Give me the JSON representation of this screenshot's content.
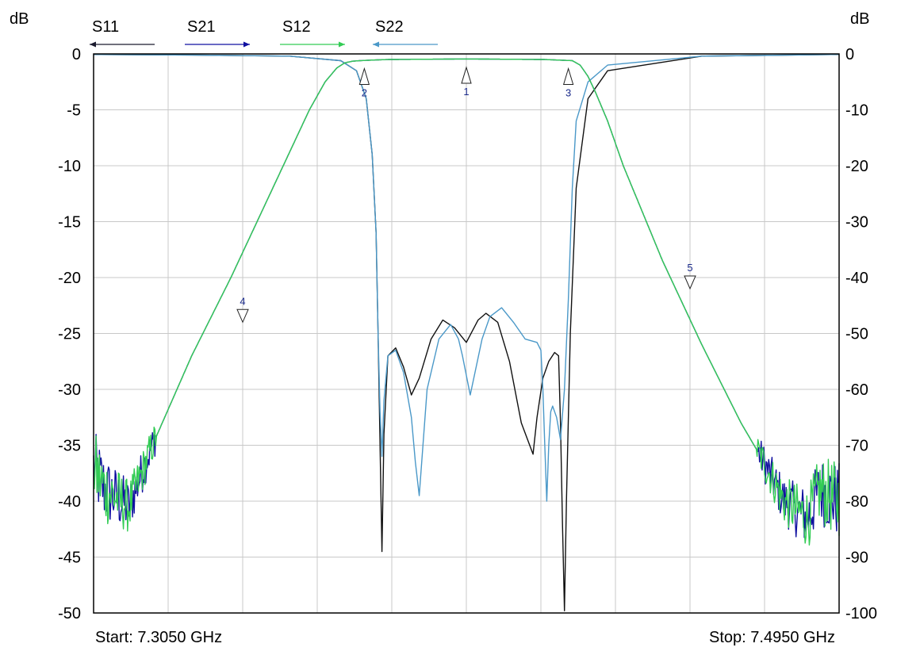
{
  "chart_data": {
    "type": "line",
    "left_axis_unit": "dB",
    "right_axis_unit": "dB",
    "start_label": "Start: 7.3050 GHz",
    "stop_label": "Stop: 7.4950 GHz",
    "xlim": [
      7.305,
      7.495
    ],
    "ylim_left": [
      -50,
      0
    ],
    "ylim_right": [
      -100,
      0
    ],
    "left_ticks": [
      "0",
      "-5",
      "-10",
      "-15",
      "-20",
      "-25",
      "-30",
      "-35",
      "-40",
      "-45",
      "-50"
    ],
    "right_ticks": [
      "0",
      "-10",
      "-20",
      "-30",
      "-40",
      "-50",
      "-60",
      "-70",
      "-80",
      "-90",
      "-100"
    ],
    "grid": true,
    "legend": [
      {
        "name": "S11",
        "color": "#1a1a2e",
        "arrow": "left"
      },
      {
        "name": "S21",
        "color": "#1010a0",
        "arrow": "right"
      },
      {
        "name": "S12",
        "color": "#33cc55",
        "arrow": "right"
      },
      {
        "name": "S22",
        "color": "#4a98c8",
        "arrow": "left"
      }
    ],
    "series": [
      {
        "name": "S11",
        "color": "#111111",
        "axis": "left",
        "x": [
          7.305,
          7.33,
          7.355,
          7.368,
          7.372,
          7.3745,
          7.376,
          7.377,
          7.3775,
          7.378,
          7.3785,
          7.379,
          7.38,
          7.382,
          7.384,
          7.386,
          7.388,
          7.391,
          7.394,
          7.397,
          7.4,
          7.403,
          7.405,
          7.408,
          7.411,
          7.414,
          7.417,
          7.418,
          7.4195,
          7.421,
          7.4225,
          7.4235,
          7.424,
          7.4245,
          7.425,
          7.4255,
          7.4265,
          7.428,
          7.431,
          7.436,
          7.46,
          7.495
        ],
        "y": [
          -0.05,
          -0.1,
          -0.2,
          -0.6,
          -1.5,
          -4.0,
          -9.0,
          -16.0,
          -25.0,
          -35.0,
          -44.5,
          -34.0,
          -27.0,
          -26.3,
          -28.0,
          -30.5,
          -29.0,
          -25.5,
          -23.8,
          -24.5,
          -25.8,
          -23.8,
          -23.2,
          -24.0,
          -27.5,
          -33.0,
          -35.8,
          -32.5,
          -29.0,
          -27.5,
          -26.7,
          -27.0,
          -33.0,
          -42.0,
          -49.8,
          -40.0,
          -25.0,
          -12.0,
          -4.0,
          -1.5,
          -0.2,
          -0.05
        ]
      },
      {
        "name": "S22",
        "color": "#4a98c8",
        "axis": "left",
        "x": [
          7.305,
          7.33,
          7.355,
          7.368,
          7.372,
          7.3745,
          7.376,
          7.377,
          7.3775,
          7.378,
          7.3785,
          7.379,
          7.38,
          7.382,
          7.384,
          7.386,
          7.387,
          7.388,
          7.39,
          7.393,
          7.396,
          7.398,
          7.399,
          7.401,
          7.404,
          7.406,
          7.409,
          7.412,
          7.415,
          7.418,
          7.419,
          7.4195,
          7.42,
          7.4205,
          7.421,
          7.4215,
          7.422,
          7.423,
          7.424,
          7.425,
          7.426,
          7.427,
          7.428,
          7.431,
          7.436,
          7.46,
          7.495
        ],
        "y": [
          -0.05,
          -0.1,
          -0.2,
          -0.6,
          -1.5,
          -4.0,
          -9.0,
          -16.0,
          -25.0,
          -32.0,
          -36.0,
          -31.0,
          -27.0,
          -26.5,
          -28.5,
          -32.5,
          -36.5,
          -39.5,
          -30.0,
          -25.5,
          -24.2,
          -25.5,
          -27.0,
          -30.5,
          -25.5,
          -23.5,
          -22.7,
          -24.0,
          -25.5,
          -25.8,
          -26.5,
          -30.0,
          -35.0,
          -40.0,
          -35.0,
          -32.0,
          -31.5,
          -32.5,
          -34.5,
          -30.0,
          -22.0,
          -12.0,
          -6.0,
          -2.5,
          -1.0,
          -0.2,
          -0.05
        ]
      },
      {
        "name": "S21",
        "color": "#1010a0",
        "axis": "right",
        "x": [
          7.305,
          7.308,
          7.314,
          7.32,
          7.325,
          7.33,
          7.34,
          7.35,
          7.36,
          7.364,
          7.367,
          7.369,
          7.371,
          7.373,
          7.376,
          7.38,
          7.4,
          7.42,
          7.427,
          7.429,
          7.431,
          7.433,
          7.436,
          7.44,
          7.45,
          7.46,
          7.47,
          7.475,
          7.481,
          7.487,
          7.49,
          7.495
        ],
        "y": [
          -74,
          -78,
          -81,
          -70,
          -62,
          -54,
          -40,
          -25,
          -10,
          -5,
          -2.5,
          -1.6,
          -1.3,
          -1.2,
          -1.1,
          -1.0,
          -0.9,
          -1.0,
          -1.2,
          -2.0,
          -4.0,
          -7.0,
          -12.0,
          -20.0,
          -37.0,
          -52.0,
          -66.0,
          -72.0,
          -80.0,
          -83.0,
          -78.0,
          -80.0
        ],
        "noise_from_x": 7.474,
        "noise_to_x": 7.321
      },
      {
        "name": "S12",
        "color": "#33cc55",
        "axis": "right",
        "x": [
          7.305,
          7.308,
          7.314,
          7.32,
          7.325,
          7.33,
          7.34,
          7.35,
          7.36,
          7.364,
          7.367,
          7.369,
          7.371,
          7.373,
          7.376,
          7.38,
          7.4,
          7.42,
          7.427,
          7.429,
          7.431,
          7.433,
          7.436,
          7.44,
          7.45,
          7.46,
          7.47,
          7.475,
          7.481,
          7.487,
          7.49,
          7.495
        ],
        "y": [
          -74,
          -78,
          -81,
          -70,
          -62,
          -54,
          -40,
          -25,
          -10,
          -5,
          -2.5,
          -1.6,
          -1.3,
          -1.2,
          -1.1,
          -1.0,
          -0.9,
          -1.0,
          -1.2,
          -2.0,
          -4.0,
          -7.0,
          -12.0,
          -20.0,
          -37.0,
          -52.0,
          -66.0,
          -72.0,
          -80.0,
          -83.0,
          -78.0,
          -80.0
        ],
        "noise_from_x": 7.474,
        "noise_to_x": 7.321
      }
    ],
    "markers": [
      {
        "label": "1",
        "x": 7.4,
        "y": -1.0,
        "direction": "up"
      },
      {
        "label": "2",
        "x": 7.374,
        "y": -1.2,
        "direction": "up"
      },
      {
        "label": "3",
        "x": 7.426,
        "y": -1.2,
        "direction": "up"
      },
      {
        "label": "4",
        "x": 7.343,
        "y": -46.0,
        "direction": "down"
      },
      {
        "label": "5",
        "x": 7.457,
        "y": -40.0,
        "direction": "down"
      }
    ]
  }
}
